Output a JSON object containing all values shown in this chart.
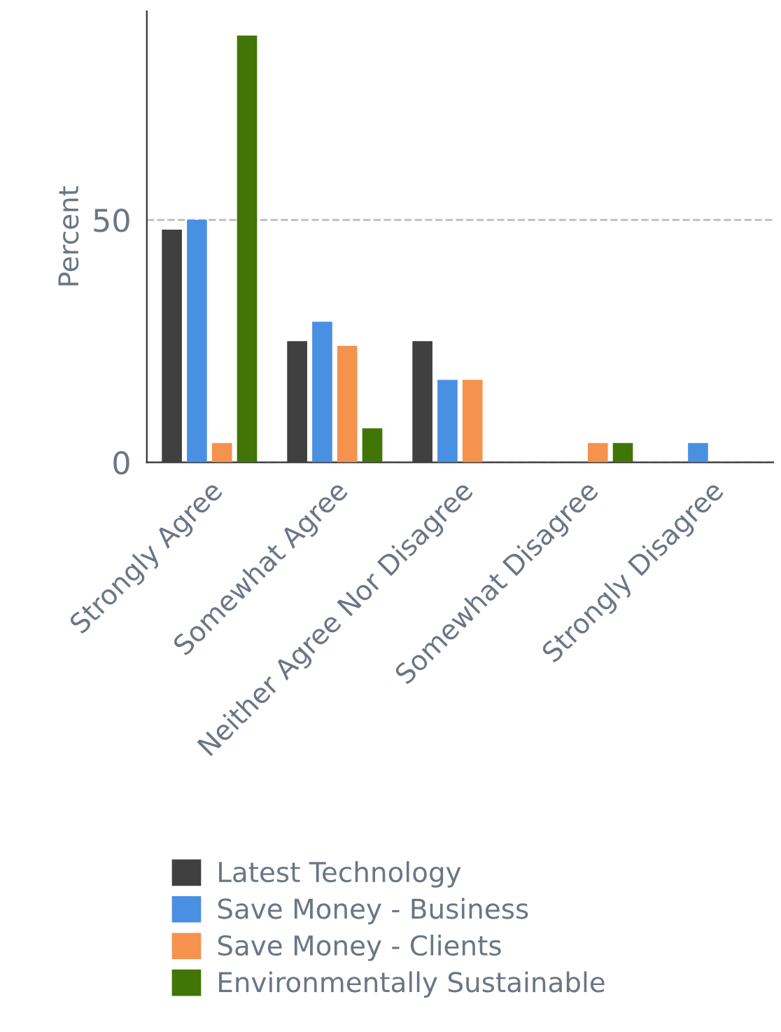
{
  "chart_data": {
    "type": "bar",
    "ylabel": "Percent",
    "categories": [
      "Strongly Agree",
      "Somewhat Agree",
      "Neither Agree Nor Disagree",
      "Somewhat Disagree",
      "Strongly Disagree"
    ],
    "series": [
      {
        "name": "Latest Technology",
        "color": "#404040",
        "values": [
          48,
          25,
          25,
          0,
          0
        ]
      },
      {
        "name": "Save Money - Business",
        "color": "#4a90e2",
        "values": [
          50,
          29,
          17,
          0,
          4
        ]
      },
      {
        "name": "Save Money - Clients",
        "color": "#f5924e",
        "values": [
          4,
          24,
          17,
          4,
          0
        ]
      },
      {
        "name": "Environmentally Sustainable",
        "color": "#417505",
        "values": [
          88,
          7,
          0,
          4,
          0
        ]
      }
    ],
    "ylim": [
      0,
      93
    ],
    "yticks": [
      0,
      50
    ],
    "grid": "y",
    "legend": "bottom"
  }
}
